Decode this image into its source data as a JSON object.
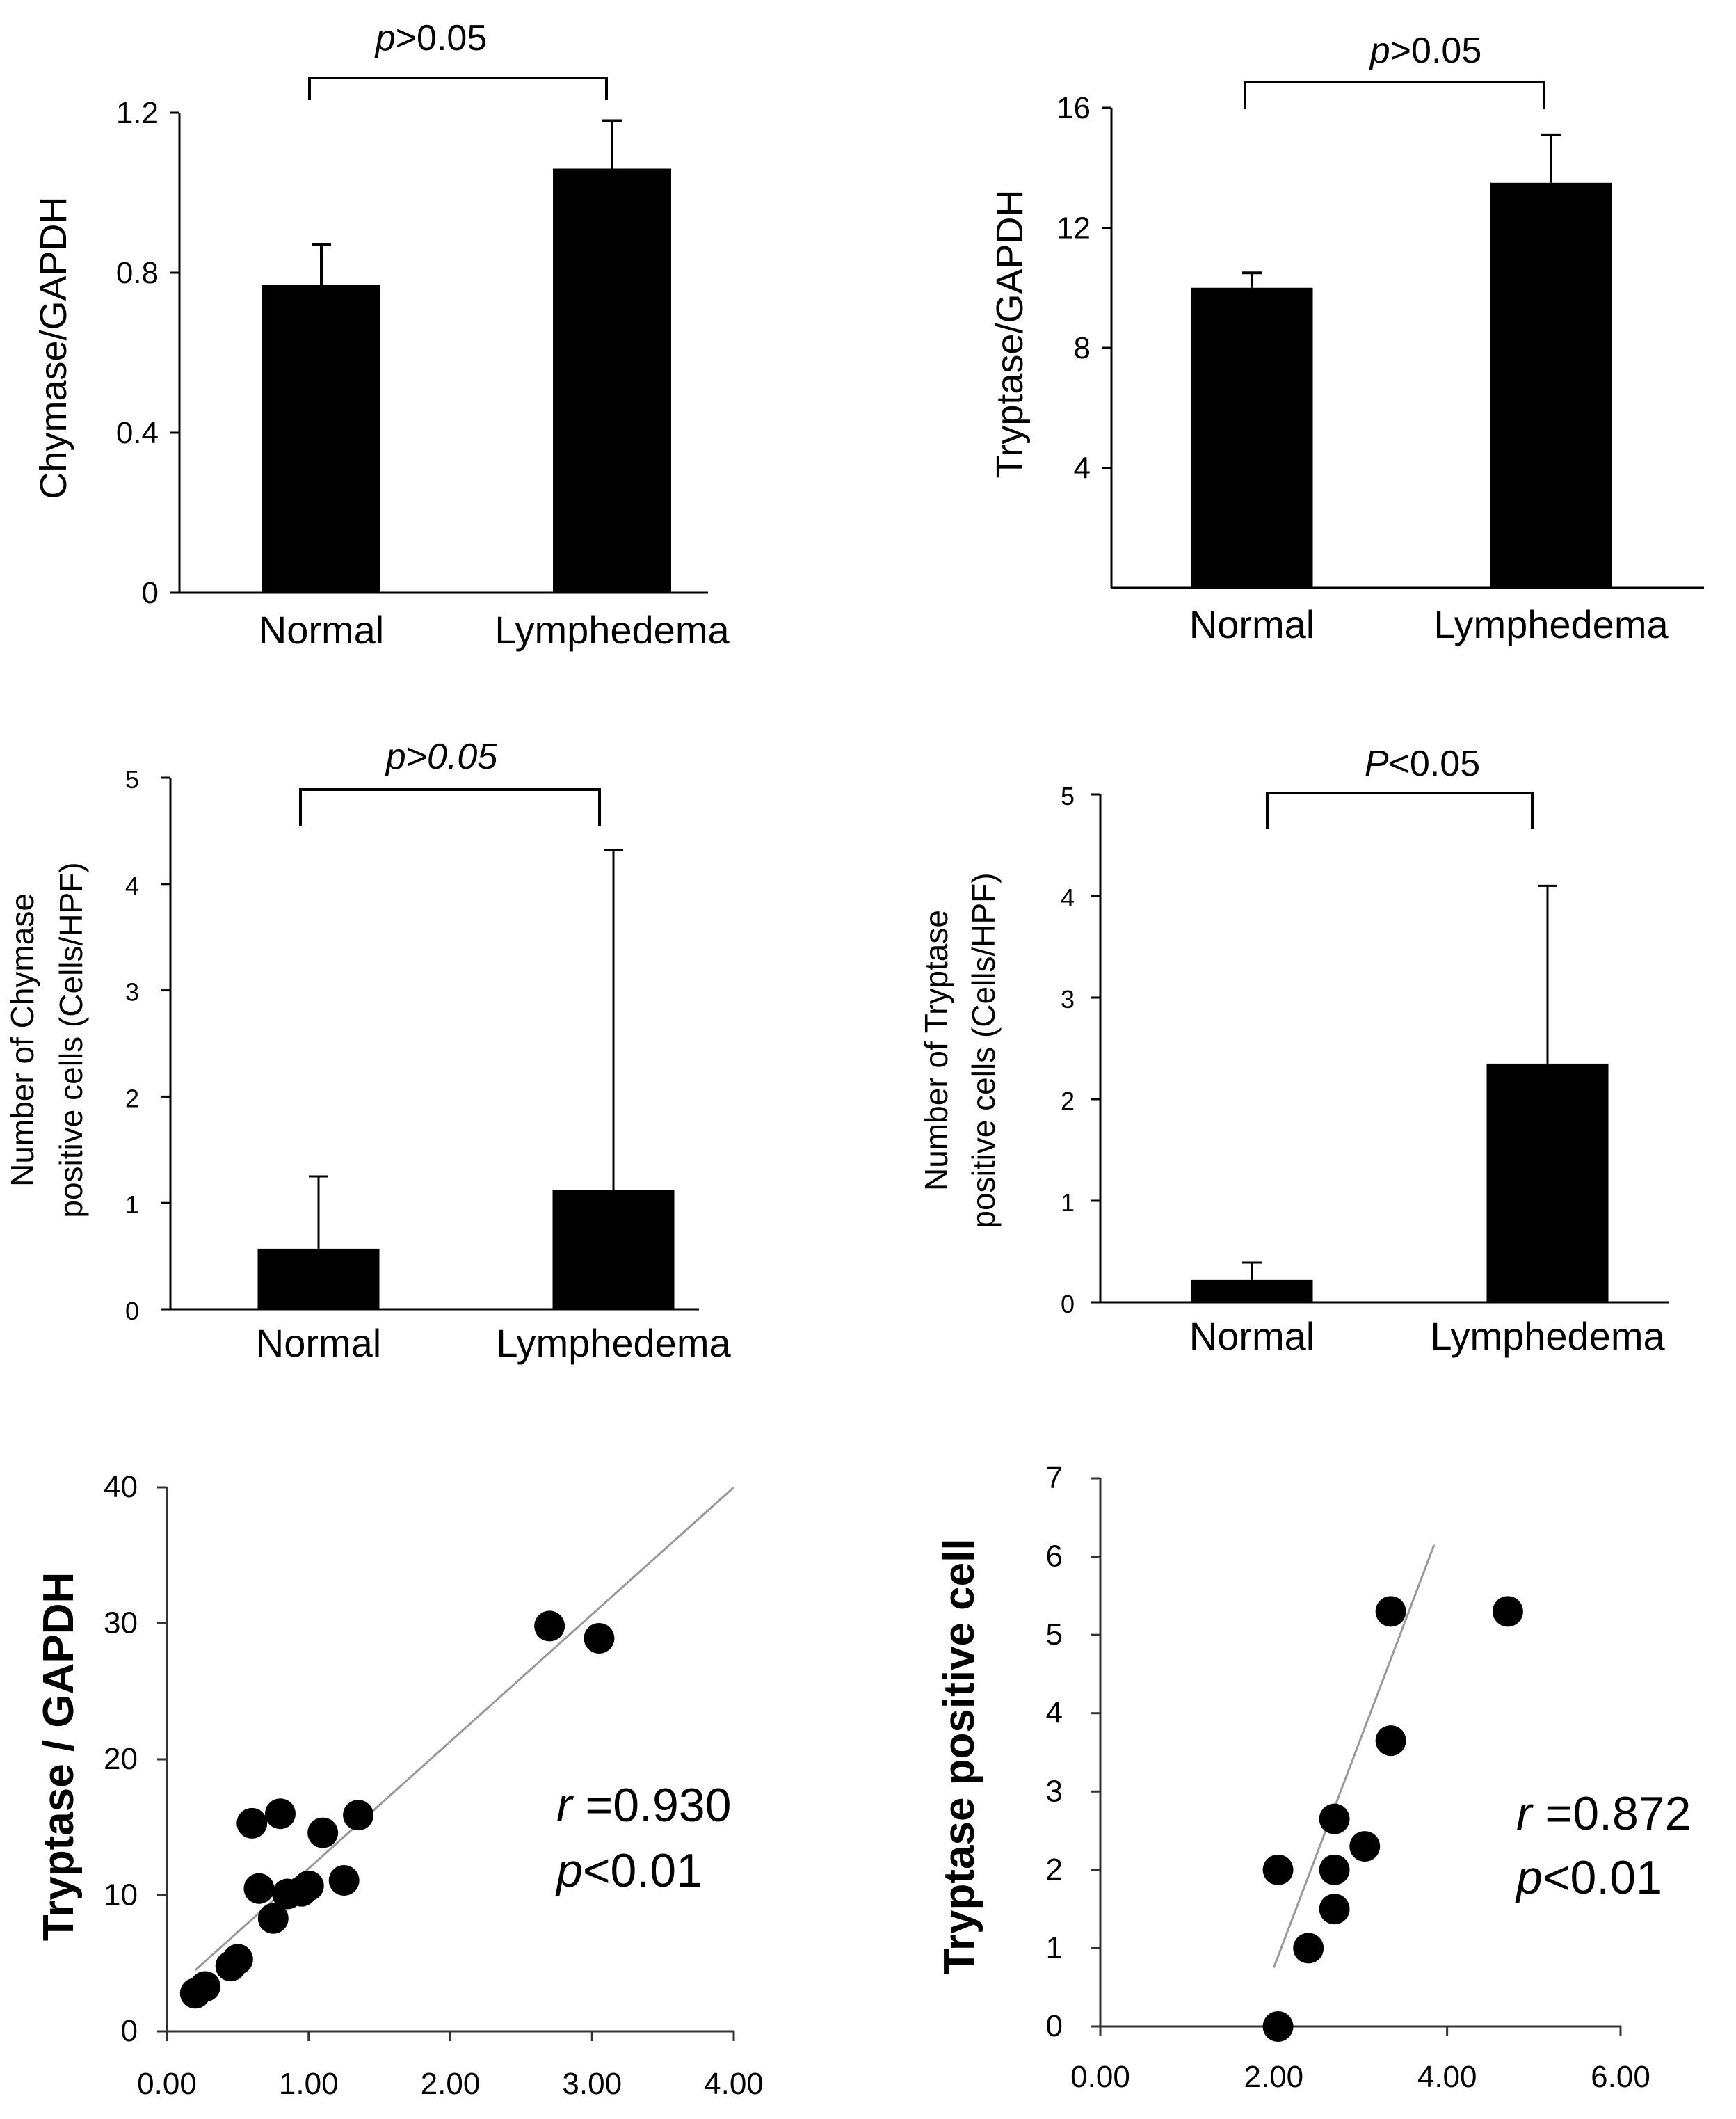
{
  "chart_data": [
    {
      "id": "chymase-mrna",
      "type": "bar",
      "categories": [
        "Normal",
        "Lymphedema"
      ],
      "values": [
        0.77,
        1.06
      ],
      "errors": [
        0.1,
        0.12
      ],
      "ylabel": "Chymase/GAPDH",
      "ylim": [
        0,
        1.2
      ],
      "yticks": [
        "0",
        "0.4",
        "0.8",
        "1.2"
      ],
      "annotation": {
        "prefix": "p",
        "rest": ">0.05"
      }
    },
    {
      "id": "tryptase-mrna",
      "type": "bar",
      "categories": [
        "Normal",
        "Lymphedema"
      ],
      "values": [
        10.0,
        13.5
      ],
      "errors": [
        0.5,
        1.6
      ],
      "ylabel": "Tryptase/GAPDH",
      "ylim": [
        0,
        16
      ],
      "yticks": [
        "4",
        "8",
        "12",
        "16"
      ],
      "annotation": {
        "prefix": "p",
        "rest": ">0.05"
      }
    },
    {
      "id": "chymase-cells",
      "type": "bar",
      "categories": [
        "Normal",
        "Lymphedema"
      ],
      "values": [
        0.57,
        1.12
      ],
      "errors": [
        0.68,
        3.2
      ],
      "ylabel_lines": [
        "Number of Chymase",
        "positive cells  (Cells/HPF)"
      ],
      "ylim": [
        0,
        5
      ],
      "yticks": [
        "0",
        "1",
        "2",
        "3",
        "4",
        "5"
      ],
      "annotation": {
        "prefix": "p>0.05",
        "rest": ""
      }
    },
    {
      "id": "tryptase-cells",
      "type": "bar",
      "categories": [
        "Normal",
        "Lymphedema"
      ],
      "values": [
        0.22,
        2.35
      ],
      "errors": [
        0.17,
        1.75
      ],
      "ylabel_lines": [
        "Number of Tryptase",
        "positive cells  (Cells/HPF)"
      ],
      "ylim": [
        0,
        5
      ],
      "yticks": [
        "0",
        "1",
        "2",
        "3",
        "4",
        "5"
      ],
      "annotation": {
        "prefix": "P",
        "rest": "<0.05"
      }
    },
    {
      "id": "scatter-gapdh",
      "type": "scatter",
      "x": [
        0.2,
        0.27,
        0.45,
        0.5,
        0.6,
        0.65,
        0.75,
        0.8,
        0.85,
        0.95,
        1.0,
        1.1,
        1.25,
        1.35,
        2.7,
        3.05
      ],
      "y": [
        2.8,
        3.3,
        4.8,
        5.3,
        15.3,
        10.5,
        8.3,
        16.0,
        10.1,
        10.3,
        10.7,
        14.6,
        11.1,
        15.9,
        29.8,
        28.9
      ],
      "fit": {
        "x": [
          0.2,
          4.0
        ],
        "y": [
          4.5,
          40.0
        ]
      },
      "ylabel": "Tryptase / GAPDH",
      "xlim": [
        0,
        4
      ],
      "ylim": [
        0,
        40
      ],
      "xticks": [
        "0.00",
        "1.00",
        "2.00",
        "3.00",
        "4.00"
      ],
      "yticks": [
        "0",
        "10",
        "20",
        "30",
        "40"
      ],
      "stats": {
        "r_sym": "r",
        "r_val": " =0.930",
        "p_sym": "p",
        "p_val": "<0.01"
      }
    },
    {
      "id": "scatter-positive",
      "type": "scatter",
      "x": [
        2.05,
        2.05,
        2.4,
        2.7,
        2.7,
        2.7,
        3.05,
        3.35,
        3.35,
        4.7
      ],
      "y": [
        0,
        2.0,
        1.0,
        2.65,
        2.0,
        1.5,
        2.3,
        3.65,
        5.3,
        5.3
      ],
      "fit": {
        "x": [
          2.0,
          3.85
        ],
        "y": [
          0.75,
          6.15
        ]
      },
      "ylabel": "Tryptase positive cell",
      "xlim": [
        0,
        6
      ],
      "ylim": [
        0,
        7
      ],
      "xticks": [
        "0.00",
        "2.00",
        "4.00",
        "6.00"
      ],
      "yticks": [
        "0",
        "1",
        "2",
        "3",
        "4",
        "5",
        "6",
        "7"
      ],
      "stats": {
        "r_sym": "r",
        "r_val": " =0.872",
        "p_sym": "p",
        "p_val": "<0.01"
      }
    }
  ]
}
